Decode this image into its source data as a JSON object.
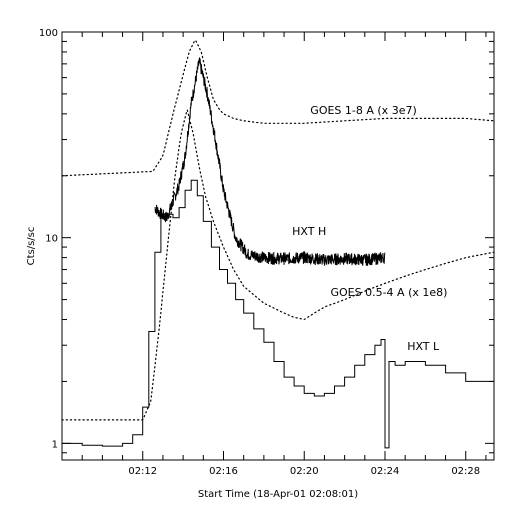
{
  "chart_data": {
    "type": "line",
    "title": "",
    "xlabel": "Start Time (18-Apr-01 02:08:01)",
    "ylabel": "Cts/s/sc",
    "yscale": "log",
    "xlim": [
      0,
      21.4
    ],
    "ylim": [
      0.83,
      100
    ],
    "y_ticks": [
      {
        "value": 1,
        "label": "1"
      },
      {
        "value": 10,
        "label": "10"
      },
      {
        "value": 100,
        "label": "100"
      }
    ],
    "x_ticks": [
      {
        "value": 4,
        "label": "02:12"
      },
      {
        "value": 8,
        "label": "02:16"
      },
      {
        "value": 12,
        "label": "02:20"
      },
      {
        "value": 16,
        "label": "02:24"
      },
      {
        "value": 20,
        "label": "02:28"
      }
    ],
    "grid": false,
    "legend": "none",
    "annotations": [
      {
        "text": "GOES 1-8 A (x 3e7)",
        "x": 12.3,
        "y": 40
      },
      {
        "text": "HXT H",
        "x": 11.4,
        "y": 10.3
      },
      {
        "text": "GOES 0.5-4 A (x 1e8)",
        "x": 13.3,
        "y": 5.2
      },
      {
        "text": "HXT L",
        "x": 17.1,
        "y": 2.85
      }
    ],
    "series": [
      {
        "name": "GOES 1-8 A (x 3e7)",
        "style": "dotted",
        "x": [
          0,
          4.5,
          5.0,
          5.5,
          6.0,
          6.3,
          6.6,
          6.9,
          7.2,
          7.5,
          7.8,
          8.0,
          8.5,
          9.0,
          10.0,
          11.0,
          12.0,
          13.0,
          14.0,
          15.0,
          16.0,
          17.0,
          18.0,
          19.0,
          20.0,
          21.4
        ],
        "y": [
          20,
          21,
          25,
          40,
          62,
          80,
          92,
          80,
          60,
          47,
          42,
          40,
          38,
          37,
          36,
          36,
          36,
          36.5,
          37,
          37.5,
          38,
          38,
          38,
          38,
          38,
          37
        ]
      },
      {
        "name": "GOES 0.5-4 A (x 1e8)",
        "style": "dotted",
        "x": [
          0,
          4.0,
          4.4,
          4.8,
          5.2,
          5.6,
          5.9,
          6.2,
          6.5,
          6.8,
          7.1,
          7.5,
          8.0,
          8.5,
          9.0,
          10.0,
          11.0,
          11.5,
          12.0,
          12.5,
          13.0,
          14.0,
          15.0,
          16.0,
          17.0,
          18.0,
          19.0,
          20.0,
          21.4
        ],
        "y": [
          1.3,
          1.3,
          1.6,
          3.5,
          8.5,
          20,
          32,
          42,
          32,
          22,
          16,
          12,
          9,
          7,
          5.8,
          4.8,
          4.3,
          4.1,
          4.0,
          4.3,
          4.6,
          5.0,
          5.5,
          6.0,
          6.5,
          7.0,
          7.5,
          8.0,
          8.5
        ]
      },
      {
        "name": "HXT H",
        "style": "noisy",
        "x": [
          4.6,
          4.9,
          5.2,
          5.5,
          5.8,
          6.1,
          6.4,
          6.8,
          7.2,
          7.6,
          8.0,
          8.6,
          9.2,
          10.0,
          11.0,
          12.0,
          13.0,
          14.0,
          15.0,
          16.0
        ],
        "y": [
          14,
          13,
          12.5,
          15,
          18,
          25,
          45,
          72,
          50,
          30,
          17,
          10,
          8.3,
          8.0,
          7.9,
          8.0,
          7.8,
          7.9,
          7.8,
          8.0
        ]
      },
      {
        "name": "HXT L",
        "style": "steps",
        "x": [
          0,
          1.0,
          2.0,
          3.0,
          3.5,
          4.0,
          4.3,
          4.6,
          4.9,
          5.2,
          5.5,
          5.8,
          6.1,
          6.4,
          6.7,
          7.0,
          7.4,
          7.8,
          8.2,
          8.6,
          9.0,
          9.5,
          10.0,
          10.5,
          11.0,
          11.5,
          12.0,
          12.5,
          13.0,
          13.5,
          14.0,
          14.5,
          15.0,
          15.5,
          15.8,
          16.0,
          16.2,
          16.5,
          17.0,
          18.0,
          19.0,
          20.0,
          21.4
        ],
        "y": [
          1.0,
          0.98,
          0.97,
          1.0,
          1.1,
          1.5,
          3.5,
          8.5,
          13,
          13,
          12.5,
          14,
          17,
          19,
          16,
          12,
          9.0,
          7.0,
          6.0,
          5.0,
          4.3,
          3.6,
          3.1,
          2.5,
          2.1,
          1.9,
          1.75,
          1.7,
          1.75,
          1.9,
          2.1,
          2.4,
          2.7,
          3.0,
          3.2,
          0.95,
          2.5,
          2.4,
          2.5,
          2.4,
          2.2,
          2.0,
          1.85
        ]
      }
    ]
  }
}
